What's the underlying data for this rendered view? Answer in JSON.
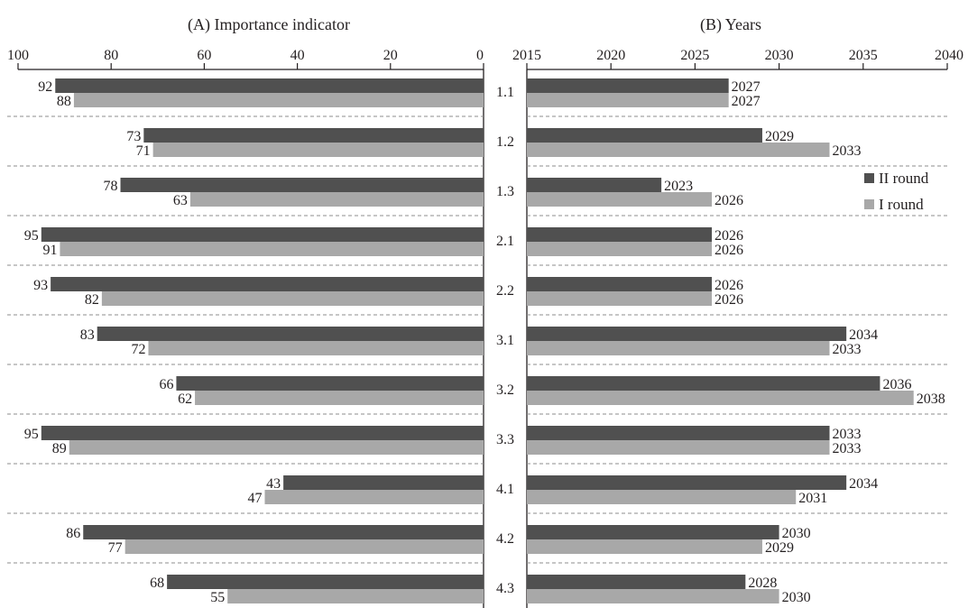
{
  "colors": {
    "II round": "#505050",
    "I round": "#a8a8a8",
    "axis": "#231f20",
    "separator": "#8c8c8c"
  },
  "chart_data": [
    {
      "type": "bar",
      "orientation": "horizontal",
      "direction": "reversed",
      "title": "(A) Importance indicator",
      "xlim": [
        0,
        100
      ],
      "ticks": [
        "100",
        "80",
        "60",
        "40",
        "20",
        "0"
      ],
      "tick_values": [
        100,
        80,
        60,
        40,
        20,
        0
      ],
      "categories": [
        "1.1",
        "1.2",
        "1.3",
        "2.1",
        "2.2",
        "3.1",
        "3.2",
        "3.3",
        "4.1",
        "4.2",
        "4.3"
      ],
      "series": [
        {
          "name": "II round",
          "values": [
            92,
            73,
            78,
            95,
            93,
            83,
            66,
            95,
            43,
            86,
            68
          ]
        },
        {
          "name": "I round",
          "values": [
            88,
            71,
            63,
            91,
            82,
            72,
            62,
            89,
            47,
            77,
            55
          ]
        }
      ]
    },
    {
      "type": "bar",
      "orientation": "horizontal",
      "title": "(B) Years",
      "xlim": [
        2015,
        2040
      ],
      "ticks": [
        "2015",
        "2020",
        "2025",
        "2030",
        "2035",
        "2040"
      ],
      "tick_values": [
        2015,
        2020,
        2025,
        2030,
        2035,
        2040
      ],
      "categories": [
        "1.1",
        "1.2",
        "1.3",
        "2.1",
        "2.2",
        "3.1",
        "3.2",
        "3.3",
        "4.1",
        "4.2",
        "4.3"
      ],
      "series": [
        {
          "name": "II round",
          "values": [
            2027,
            2029,
            2023,
            2026,
            2026,
            2034,
            2036,
            2033,
            2034,
            2030,
            2028
          ]
        },
        {
          "name": "I round",
          "values": [
            2027,
            2033,
            2026,
            2026,
            2026,
            2033,
            2038,
            2033,
            2031,
            2029,
            2030
          ]
        }
      ],
      "legend": {
        "position": "right",
        "entries": [
          "II round",
          "I round"
        ]
      }
    }
  ]
}
